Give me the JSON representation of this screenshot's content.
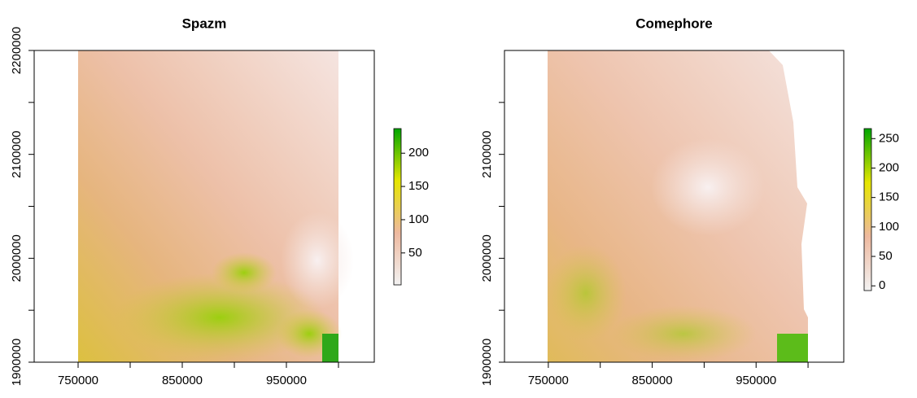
{
  "chart_data": [
    {
      "type": "raster",
      "title": "Spazm",
      "xlim": [
        707800,
        1034400
      ],
      "ylim": [
        1900000,
        2200000
      ],
      "xticks": [
        750000,
        {
          "value": 800000,
          "label": null
        },
        850000,
        {
          "value": 900000,
          "label": null
        },
        950000,
        {
          "value": 1000000,
          "label": null
        }
      ],
      "yticks": [
        1900000,
        {
          "value": 1950000,
          "label": null
        },
        2000000,
        {
          "value": 2050000,
          "label": null
        },
        2100000,
        {
          "value": 2150000,
          "label": null
        },
        2200000
      ],
      "colorbar": {
        "lim": [
          2,
          237
        ],
        "ticks": [
          50,
          100,
          150,
          200
        ],
        "colors": [
          "#f2f2f2",
          "#eeb99f",
          "#e6e600",
          "#00a600"
        ]
      }
    },
    {
      "type": "raster",
      "title": "Comephore",
      "xlim": [
        707800,
        1034400
      ],
      "ylim": [
        1900000,
        2200000
      ],
      "xticks": [
        750000,
        {
          "value": 800000,
          "label": null
        },
        850000,
        {
          "value": 900000,
          "label": null
        },
        950000,
        {
          "value": 1000000,
          "label": null
        }
      ],
      "yticks": [
        1900000,
        {
          "value": 1950000,
          "label": null
        },
        2000000,
        {
          "value": 2050000,
          "label": null
        },
        2100000,
        {
          "value": 2150000,
          "label": null
        }
      ],
      "colorbar": {
        "lim": [
          -8,
          267
        ],
        "ticks": [
          0,
          50,
          100,
          150,
          200,
          250
        ],
        "colors": [
          "#f2f2f2",
          "#eeb99f",
          "#e6e600",
          "#00a600"
        ]
      }
    }
  ]
}
